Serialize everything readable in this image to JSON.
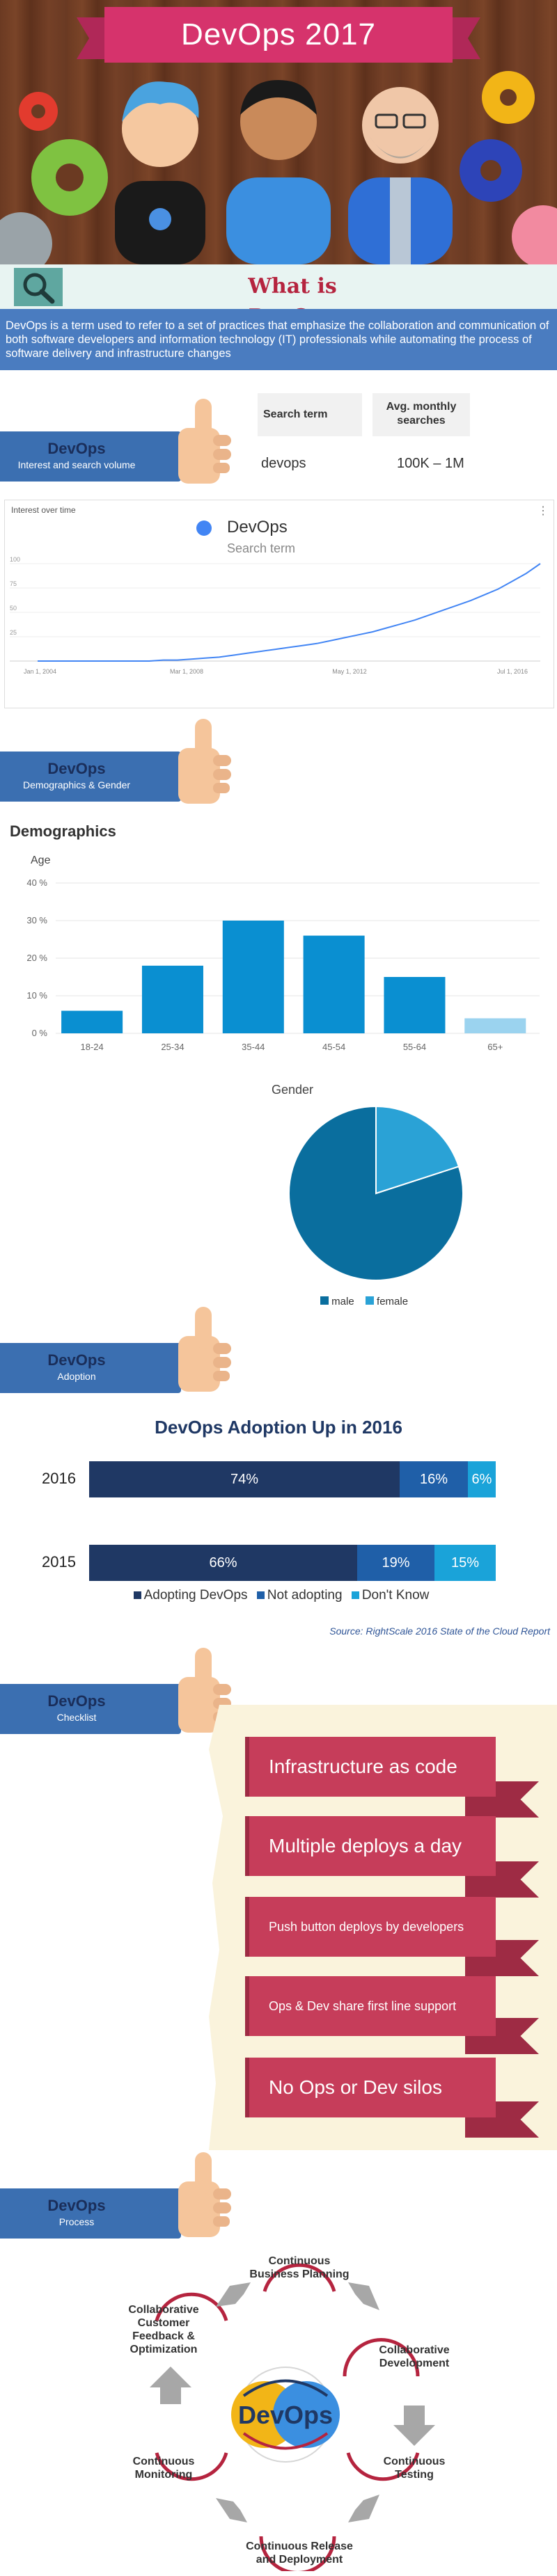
{
  "hero": {
    "title": "DevOps 2017"
  },
  "what": {
    "title": "What is DevOps",
    "text": "DevOps is a term used to refer to a set of practices that emphasize the collaboration and communication of both software developers and information technology (IT) professionals while automating the process of software delivery and infrastructure changes"
  },
  "interest": {
    "label_title": "DevOps",
    "label_sub": "Interest and search volume",
    "table": {
      "col1": "Search term",
      "col2": "Avg. monthly searches",
      "term": "devops",
      "volume": "100K – 1M"
    },
    "chart": {
      "title": "Interest over time",
      "series_name": "DevOps",
      "series_sub": "Search term",
      "menu": "⋮"
    }
  },
  "demographics_section": {
    "label_title": "DevOps",
    "label_sub": "Demographics & Gender",
    "title": "Demographics",
    "age_title": "Age",
    "gender_title": "Gender",
    "gender_legend_male": "male",
    "gender_legend_female": "female"
  },
  "adoption": {
    "label_title": "DevOps",
    "label_sub": "Adoption",
    "title": "DevOps Adoption Up in 2016",
    "rows": [
      {
        "year": "2016",
        "adopting": "74%",
        "not_adopting": "16%",
        "dont_know": "6%"
      },
      {
        "year": "2015",
        "adopting": "66%",
        "not_adopting": "19%",
        "dont_know": "15%"
      }
    ],
    "legend": [
      "Adopting DevOps",
      "Not adopting",
      "Don't Know"
    ],
    "source": "Source: RightScale 2016 State of the Cloud Report"
  },
  "checklist": {
    "label_title": "DevOps",
    "label_sub": "Checklist",
    "items": [
      "Infrastructure as code",
      "Multiple deploys a day",
      "Push button deploys by developers",
      "Ops & Dev share first line support",
      "No Ops or Dev silos"
    ]
  },
  "process": {
    "label_title": "DevOps",
    "label_sub": "Process",
    "center_logo": "DevOps",
    "steps": [
      "Continuous Business Planning",
      "Collaborative Development",
      "Continuous Testing",
      "Continuous Release and Deployment",
      "Continuous Monitoring",
      "Collaborative Customer Feedback & Optimization"
    ],
    "step_lines": [
      [
        "Continuous",
        "Business Planning"
      ],
      [
        "Collaborative",
        "Development"
      ],
      [
        "Continuous",
        "Testing"
      ],
      [
        "Continuous Release",
        "and Deployment"
      ],
      [
        "Continuous",
        "Monitoring"
      ],
      [
        "Collaborative",
        "Customer",
        "Feedback &",
        "Optimization"
      ]
    ]
  },
  "colors": {
    "banner": "#d6336c",
    "section_blue": "#3b6fb1",
    "adopt_dark": "#1f3864",
    "adopt_mid": "#1f5fa8",
    "adopt_light": "#1aa3d9",
    "ribbon": "#c63d5a",
    "bar_blue": "#0a8fd1",
    "pie_male": "#0a6e9e",
    "pie_female": "#2aa2d6"
  },
  "chart_data": [
    {
      "type": "line",
      "title": "Interest over time",
      "series": [
        {
          "name": "DevOps",
          "values": [
            0,
            0,
            0,
            0,
            0,
            0,
            0,
            0,
            0,
            1,
            1,
            2,
            3,
            4,
            6,
            8,
            10,
            12,
            14,
            16,
            18,
            21,
            24,
            27,
            30,
            34,
            38,
            42,
            47,
            52,
            57,
            62,
            68,
            74,
            82,
            90,
            100
          ]
        }
      ],
      "x_tick_labels": [
        "Jan 1, 2004",
        "Mar 1, 2008",
        "May 1, 2012",
        "Jul 1, 2016"
      ],
      "y_tick_labels": [
        "100",
        "75",
        "50",
        "25"
      ],
      "ylim": [
        0,
        100
      ]
    },
    {
      "type": "bar",
      "title": "Age",
      "categories": [
        "18-24",
        "25-34",
        "35-44",
        "45-54",
        "55-64",
        "65+"
      ],
      "values": [
        6,
        18,
        30,
        26,
        15,
        4
      ],
      "y_tick_labels": [
        "40 %",
        "30 %",
        "20 %",
        "10 %",
        "0 %"
      ],
      "ylim": [
        0,
        40
      ]
    },
    {
      "type": "pie",
      "title": "Gender",
      "categories": [
        "male",
        "female"
      ],
      "values": [
        80,
        20
      ]
    },
    {
      "type": "bar",
      "title": "DevOps Adoption Up in 2016",
      "categories": [
        "2016",
        "2015"
      ],
      "series": [
        {
          "name": "Adopting DevOps",
          "values": [
            74,
            66
          ]
        },
        {
          "name": "Not adopting",
          "values": [
            16,
            19
          ]
        },
        {
          "name": "Don't Know",
          "values": [
            6,
            15
          ]
        }
      ]
    }
  ]
}
